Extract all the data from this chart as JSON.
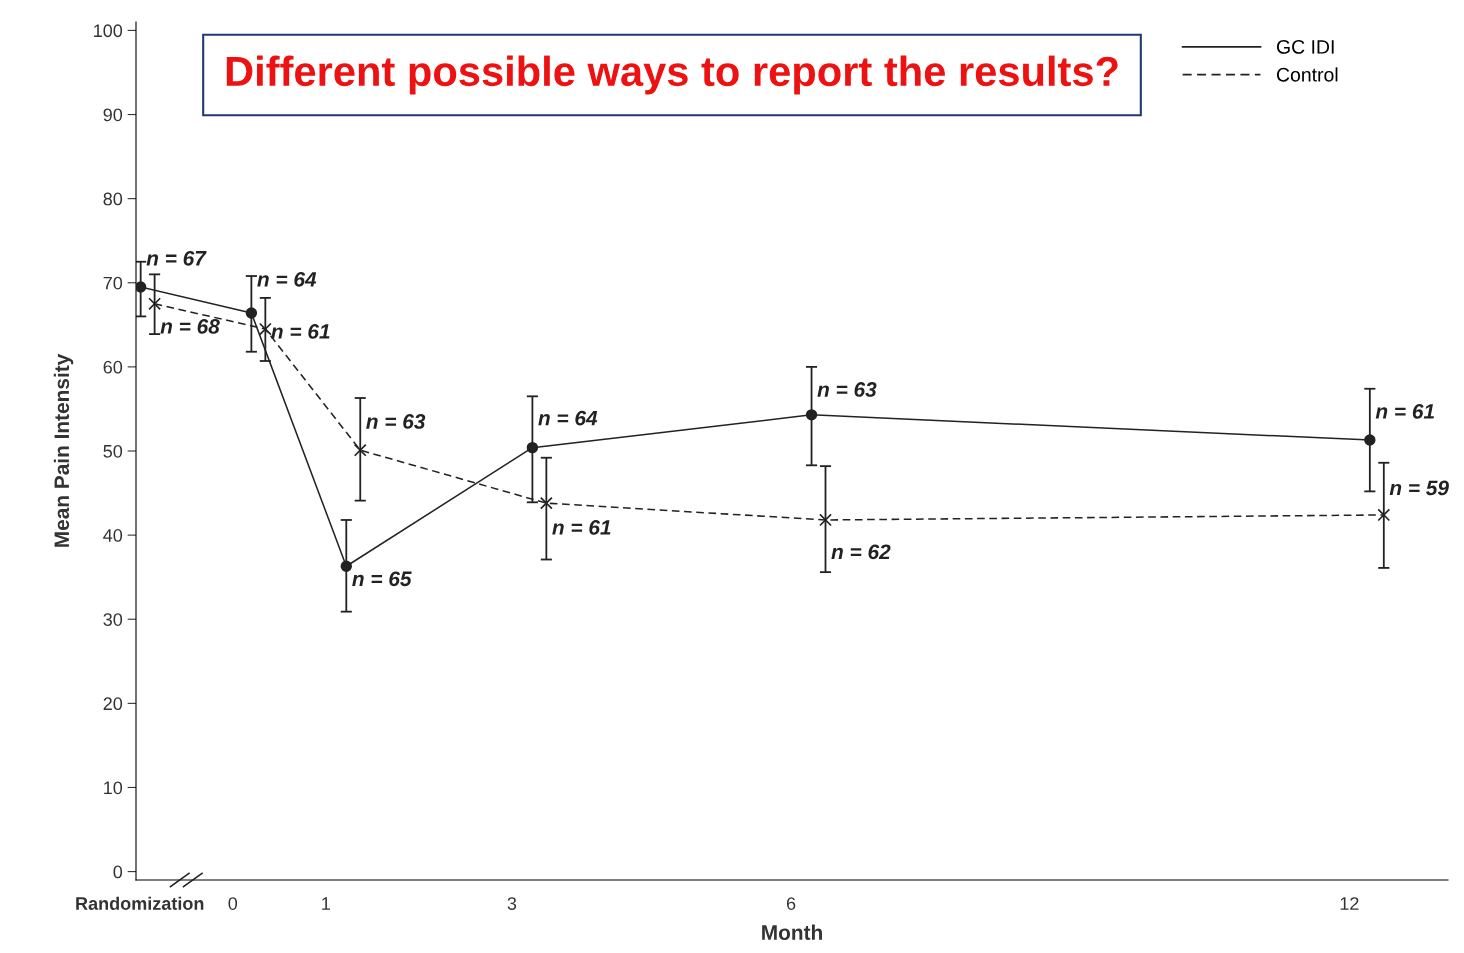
{
  "chart_data": {
    "type": "line",
    "title": "Different possible ways to report the results?",
    "xlabel": "Month",
    "ylabel": "Mean Pain Intensity",
    "xlim": [
      -1.04,
      13.06
    ],
    "ylim": [
      -1,
      101
    ],
    "xticks": [
      {
        "value": -1,
        "label": "Randomization"
      },
      0,
      1,
      3,
      6,
      12
    ],
    "yticks": [
      0,
      10,
      20,
      30,
      40,
      50,
      60,
      70,
      80,
      90,
      100
    ],
    "legend": "top right",
    "grid": false,
    "series": [
      {
        "name": "GC IDI",
        "color": "#222222",
        "marker": "circle",
        "line_style": "solid",
        "x": [
          -0.99,
          0.2,
          1.22,
          3.22,
          6.22,
          12.22
        ],
        "values": [
          69.5,
          66.4,
          36.3,
          50.4,
          54.3,
          51.3
        ],
        "errors": [
          [
            66.0,
            72.5
          ],
          [
            61.8,
            70.8
          ],
          [
            30.9,
            41.8
          ],
          [
            43.9,
            56.5
          ],
          [
            48.3,
            60.0
          ],
          [
            45.2,
            57.4
          ]
        ]
      },
      {
        "name": "Control",
        "color": "#222222",
        "marker": "cross",
        "line_style": "dashed",
        "x": [
          -0.84,
          0.35,
          1.37,
          3.37,
          6.37,
          12.37
        ],
        "values": [
          67.5,
          64.5,
          50.1,
          43.8,
          41.8,
          42.4
        ],
        "errors": [
          [
            63.9,
            71.0
          ],
          [
            60.7,
            68.2
          ],
          [
            44.1,
            56.3
          ],
          [
            37.1,
            49.2
          ],
          [
            35.6,
            48.2
          ],
          [
            36.1,
            48.6
          ]
        ]
      }
    ],
    "annotations": [
      {
        "text": "n = 67",
        "x": -0.99,
        "y": 72.7
      },
      {
        "text": "n = 68",
        "x": -0.84,
        "y": 64.6
      },
      {
        "text": "n = 64",
        "x": 0.2,
        "y": 70.2
      },
      {
        "text": "n = 61",
        "x": 0.35,
        "y": 64.0
      },
      {
        "text": "n = 65",
        "x": 1.22,
        "y": 34.6
      },
      {
        "text": "n = 63",
        "x": 1.37,
        "y": 53.3
      },
      {
        "text": "n = 64",
        "x": 3.22,
        "y": 53.7
      },
      {
        "text": "n = 61",
        "x": 3.37,
        "y": 40.7
      },
      {
        "text": "n = 63",
        "x": 6.22,
        "y": 57.1
      },
      {
        "text": "n = 62",
        "x": 6.37,
        "y": 37.8
      },
      {
        "text": "n = 61",
        "x": 12.22,
        "y": 54.5
      },
      {
        "text": "n = 59",
        "x": 12.37,
        "y": 45.4
      }
    ]
  }
}
